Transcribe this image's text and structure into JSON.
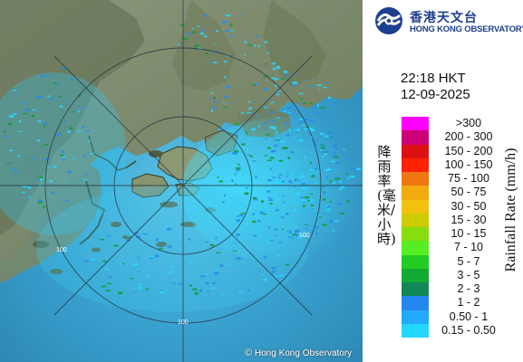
{
  "logo": {
    "chinese_name": "香港天文台",
    "english_name": "HONG KONG OBSERVATORY"
  },
  "timestamp": {
    "time": "22:18 HKT",
    "date": "12-09-2025"
  },
  "legend": {
    "title_chinese": "降雨率(毫米/小時)",
    "title_english": "Rainfall Rate (mm/h)",
    "classes": [
      {
        "label": ">300",
        "color": "#ff00ff"
      },
      {
        "label": "200 - 300",
        "color": "#cc0077"
      },
      {
        "label": "150 - 200",
        "color": "#dd1111"
      },
      {
        "label": "100 - 150",
        "color": "#ff2200"
      },
      {
        "label": "75 - 100",
        "color": "#ee7711"
      },
      {
        "label": "50 - 75",
        "color": "#f2aa11"
      },
      {
        "label": "30 - 50",
        "color": "#f2c10d"
      },
      {
        "label": "15 - 30",
        "color": "#cccc00"
      },
      {
        "label": "10 - 15",
        "color": "#88dd11"
      },
      {
        "label": "7 - 10",
        "color": "#55ee22"
      },
      {
        "label": "5 - 7",
        "color": "#22cc22"
      },
      {
        "label": "3 - 5",
        "color": "#11aa33"
      },
      {
        "label": "2 - 3",
        "color": "#118855"
      },
      {
        "label": "1 - 2",
        "color": "#2288ee"
      },
      {
        "label": "0.50 - 1",
        "color": "#22aaff"
      },
      {
        "label": "0.15 - 0.50",
        "color": "#22d8ff"
      }
    ]
  },
  "map": {
    "range_ring_labels": [
      "100",
      "100",
      "100"
    ],
    "copyright": "Hong Kong Observatory",
    "colors": {
      "land": "#7d8a6a",
      "land_dark": "#4f5d44",
      "sea": "#3aa2cf",
      "sea_near": "#55c6e8",
      "rain_light": "#29d4ff",
      "rain_mid": "#2a8ee8",
      "rain_green": "#1a9a3c"
    }
  }
}
